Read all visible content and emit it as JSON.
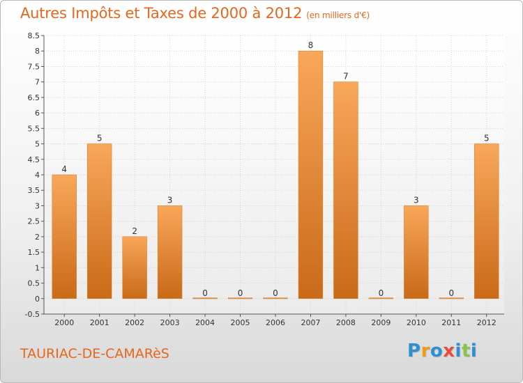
{
  "header": {
    "title": "Autres Impôts et Taxes de 2000 à 2012",
    "subtitle": "(en milliers d'€)"
  },
  "footer": {
    "town": "TAURIAC-DE-CAMARèS",
    "logo_letters": [
      "P",
      "r",
      "o",
      "x",
      "i",
      "t",
      "i"
    ],
    "logo_colors": [
      "#2e8fd3",
      "#f39c12",
      "#2e8fd3",
      "#e74c3c",
      "#2e8fd3",
      "#8bc34a",
      "#2e8fd3"
    ]
  },
  "chart_data": {
    "type": "bar",
    "title": "Autres Impôts et Taxes de 2000 à 2012",
    "subtitle": "(en milliers d'€)",
    "categories": [
      "2000",
      "2001",
      "2002",
      "2003",
      "2004",
      "2005",
      "2006",
      "2007",
      "2008",
      "2009",
      "2010",
      "2011",
      "2012"
    ],
    "values": [
      4,
      5,
      2,
      3,
      0,
      0,
      0,
      8,
      7,
      0,
      3,
      0,
      5
    ],
    "data_labels": [
      "4",
      "5",
      "2",
      "3",
      "0",
      "0",
      "0",
      "8",
      "7",
      "0",
      "3",
      "0",
      "5"
    ],
    "ylim": [
      -0.5,
      8.5
    ],
    "yticks": [
      "-0.5",
      "0",
      "0.5",
      "1",
      "1.5",
      "2",
      "2.5",
      "3",
      "3.5",
      "4",
      "4.5",
      "5",
      "5.5",
      "6",
      "6.5",
      "7",
      "7.5",
      "8",
      "8.5"
    ],
    "grid": true,
    "bar_color_top": "#f9a75a",
    "bar_color_bottom": "#c96a18",
    "accent": "#e8661c"
  }
}
